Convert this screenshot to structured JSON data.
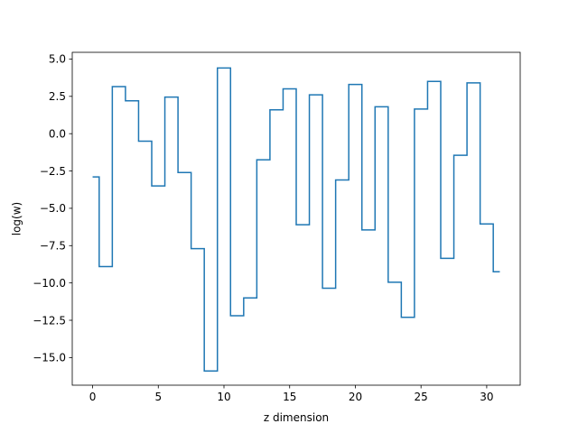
{
  "chart_data": {
    "type": "line",
    "drawstyle": "steps-mid",
    "title": "",
    "xlabel": "z dimension",
    "ylabel": "log(w)",
    "xlim": [
      -1.55,
      32.55
    ],
    "ylim": [
      -16.85,
      5.45
    ],
    "xticks": [
      0,
      5,
      10,
      15,
      20,
      25,
      30
    ],
    "xtick_labels": [
      "0",
      "5",
      "10",
      "15",
      "20",
      "25",
      "30"
    ],
    "yticks": [
      5.0,
      2.5,
      0.0,
      -2.5,
      -5.0,
      -7.5,
      -10.0,
      -12.5,
      -15.0
    ],
    "ytick_labels": [
      "5.0",
      "2.5",
      "0.0",
      "−2.5",
      "−5.0",
      "−7.5",
      "−10.0",
      "−12.5",
      "−15.0"
    ],
    "grid": false,
    "legend": false,
    "series": [
      {
        "color": "#1f77b4",
        "x": [
          0,
          1,
          2,
          3,
          4,
          5,
          6,
          7,
          8,
          9,
          10,
          11,
          12,
          13,
          14,
          15,
          16,
          17,
          18,
          19,
          20,
          21,
          22,
          23,
          24,
          25,
          26,
          27,
          28,
          29,
          30,
          31
        ],
        "y": [
          -2.9,
          -8.9,
          3.15,
          2.2,
          -0.5,
          -3.5,
          2.45,
          -2.6,
          -7.7,
          -15.9,
          4.4,
          -12.2,
          -11.0,
          -1.75,
          1.6,
          3.0,
          -6.1,
          2.6,
          -10.35,
          -3.1,
          3.3,
          -6.45,
          1.8,
          -9.95,
          -12.3,
          1.65,
          3.5,
          -8.35,
          -1.45,
          3.4,
          -6.05,
          -9.25
        ]
      }
    ]
  }
}
